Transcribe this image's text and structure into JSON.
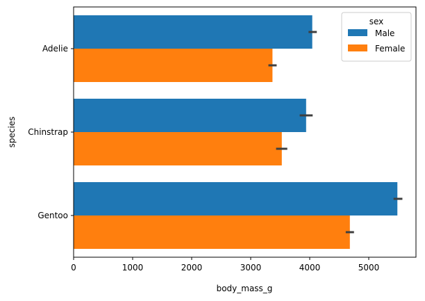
{
  "chart_data": {
    "type": "bar",
    "orientation": "horizontal",
    "categories": [
      "Adelie",
      "Chinstrap",
      "Gentoo"
    ],
    "series": [
      {
        "name": "Male",
        "color": "#1f77b4",
        "values": [
          4043,
          3939,
          5485
        ],
        "error": [
          [
            3980,
            4120
          ],
          [
            3830,
            4050
          ],
          [
            5420,
            5570
          ]
        ]
      },
      {
        "name": "Female",
        "color": "#ff7f0e",
        "values": [
          3369,
          3527,
          4680
        ],
        "error": [
          [
            3300,
            3440
          ],
          [
            3430,
            3620
          ],
          [
            4610,
            4750
          ]
        ]
      }
    ],
    "xlabel": "body_mass_g",
    "ylabel": "species",
    "xlim": [
      0,
      5800
    ],
    "xticks": [
      0,
      1000,
      2000,
      3000,
      4000,
      5000
    ],
    "xtick_labels": [
      "0",
      "1000",
      "2000",
      "3000",
      "4000",
      "5000"
    ],
    "legend": {
      "title": "sex",
      "placement": "top-right"
    },
    "grid": false
  }
}
